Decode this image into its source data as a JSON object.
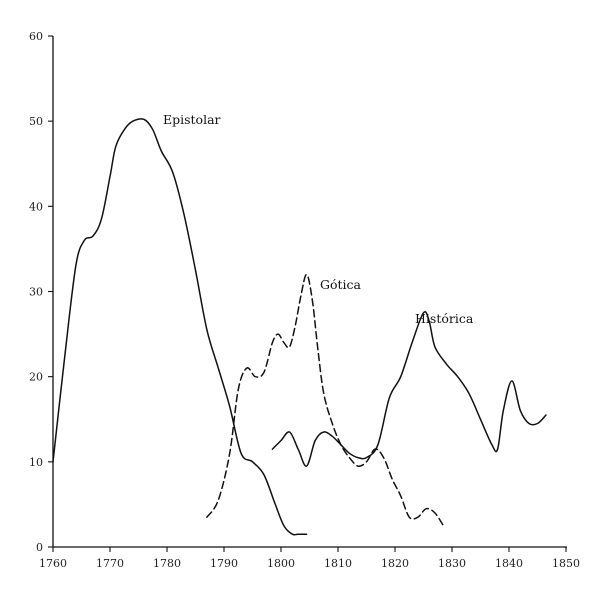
{
  "chart_data": {
    "type": "line",
    "title": "",
    "xlabel": "",
    "ylabel": "",
    "xlim": [
      1760,
      1850
    ],
    "ylim": [
      0,
      60
    ],
    "grid": false,
    "legend": "inline labels",
    "x_ticks": [
      "1760",
      "1770",
      "1780",
      "1790",
      "1800",
      "1810",
      "1820",
      "1830",
      "1840",
      "1850"
    ],
    "y_ticks": [
      "0",
      "10",
      "20",
      "30",
      "40",
      "50",
      "60"
    ],
    "colors": {
      "line": "#111111",
      "axis": "#111111",
      "background": "#ffffff"
    },
    "series": [
      {
        "name": "Epistolar",
        "style": "solid",
        "x": [
          1760,
          1762,
          1764,
          1765.5,
          1767,
          1768.5,
          1770,
          1771,
          1772.5,
          1774,
          1776,
          1777.5,
          1779,
          1781,
          1783,
          1785,
          1787,
          1789,
          1791,
          1793,
          1795,
          1797,
          1799,
          1800.5,
          1802,
          1803,
          1804.5
        ],
        "y": [
          10,
          22,
          33,
          36,
          36.5,
          38.5,
          43.5,
          47,
          49,
          50,
          50.2,
          49,
          46.5,
          44,
          39,
          32.5,
          25.5,
          21,
          16.5,
          11,
          10,
          8.5,
          5,
          2.5,
          1.5,
          1.5,
          1.5
        ]
      },
      {
        "name": "Gótica",
        "style": "dashed",
        "x": [
          1787,
          1789,
          1791,
          1792.5,
          1794,
          1795.5,
          1797,
          1798.5,
          1799.5,
          1800.5,
          1801.5,
          1802.5,
          1803.5,
          1804.5,
          1805.5,
          1806.5,
          1807.5,
          1809,
          1810.5,
          1812,
          1813.5,
          1815,
          1816.5,
          1818,
          1819.5,
          1821,
          1822.5,
          1824,
          1825.5,
          1827,
          1828.5
        ],
        "y": [
          3.5,
          5.5,
          11,
          18.5,
          21,
          20,
          20.5,
          24,
          25,
          24,
          23.5,
          26,
          29.5,
          32,
          29,
          23,
          18,
          14.5,
          12,
          10.5,
          9.5,
          10,
          11.5,
          10.5,
          8,
          6,
          3.5,
          3.5,
          4.5,
          4,
          2.5
        ]
      },
      {
        "name": "Histórica",
        "style": "solid",
        "x": [
          1798.5,
          1800,
          1801.5,
          1803,
          1804.5,
          1806,
          1807.5,
          1809,
          1810.5,
          1812,
          1813.5,
          1815,
          1817,
          1819,
          1821,
          1823,
          1825,
          1826,
          1827,
          1829,
          1831,
          1833,
          1835,
          1837,
          1838,
          1839,
          1840.5,
          1842,
          1843.5,
          1845,
          1846.5
        ],
        "y": [
          11.5,
          12.5,
          13.5,
          11.5,
          9.5,
          12.5,
          13.5,
          13,
          12,
          11,
          10.5,
          10.5,
          12,
          17.5,
          20,
          24,
          27.5,
          26.5,
          23.5,
          21.5,
          20,
          18,
          15,
          12,
          11.5,
          16,
          19.5,
          16,
          14.5,
          14.5,
          15.5
        ]
      }
    ]
  }
}
